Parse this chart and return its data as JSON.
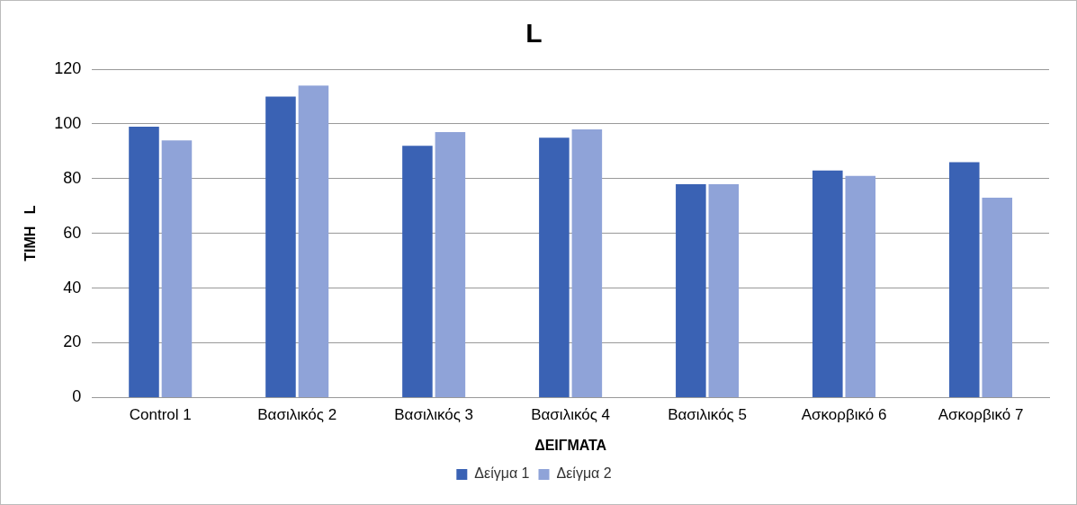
{
  "chart_data": {
    "type": "bar",
    "title": "L",
    "xlabel": "ΔΕΙΓΜΑΤΑ",
    "ylabel": "ΤΙΜΗ   L",
    "categories": [
      "Control 1",
      "Βασιλικός 2",
      "Βασιλικός 3",
      "Βασιλικός 4",
      "Βασιλικός 5",
      "Ασκορβικό 6",
      "Ασκορβικό 7"
    ],
    "series": [
      {
        "name": "Δείγμα 1",
        "color": "#3a62b4",
        "values": [
          99,
          110,
          92,
          95,
          78,
          83,
          86
        ]
      },
      {
        "name": "Δείγμα 2",
        "color": "#8fa3d8",
        "values": [
          94,
          114,
          97,
          98,
          78,
          81,
          73
        ]
      }
    ],
    "ylim": [
      0,
      120
    ],
    "yticks": [
      0,
      20,
      40,
      60,
      80,
      100,
      120
    ],
    "grid": "y",
    "legend": "bottom"
  }
}
